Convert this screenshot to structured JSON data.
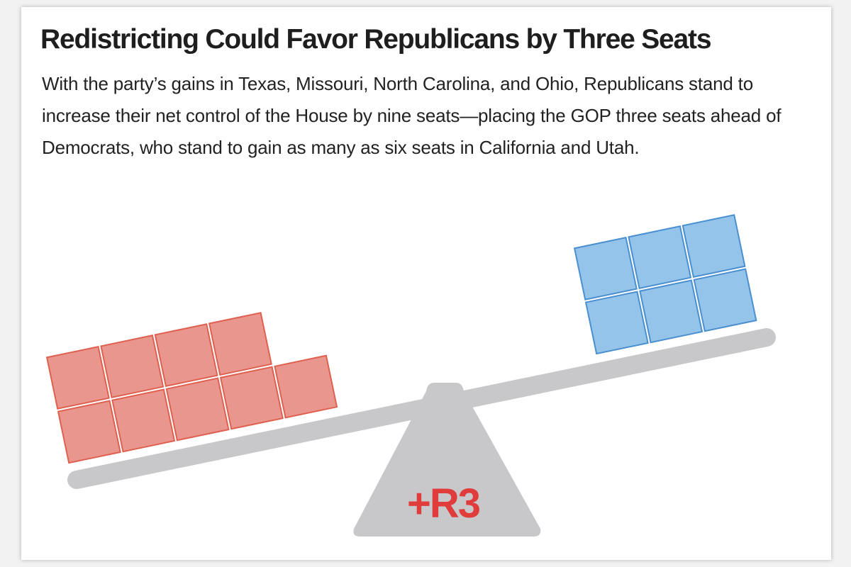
{
  "title": "Redistricting Could Favor Republicans by Three Seats",
  "description": "With the party’s gains in Texas, Missouri, North Carolina, and Ohio, Republicans stand to increase their net control of the House by nine seats—placing the GOP three seats ahead of Democrats, who stand to gain as many as six seats in California and Utah.",
  "balance": {
    "republican": {
      "seats": 9,
      "color": "#e9978e"
    },
    "democratic": {
      "seats": 6,
      "color": "#94c4ea"
    },
    "net_label": "+R3"
  }
}
